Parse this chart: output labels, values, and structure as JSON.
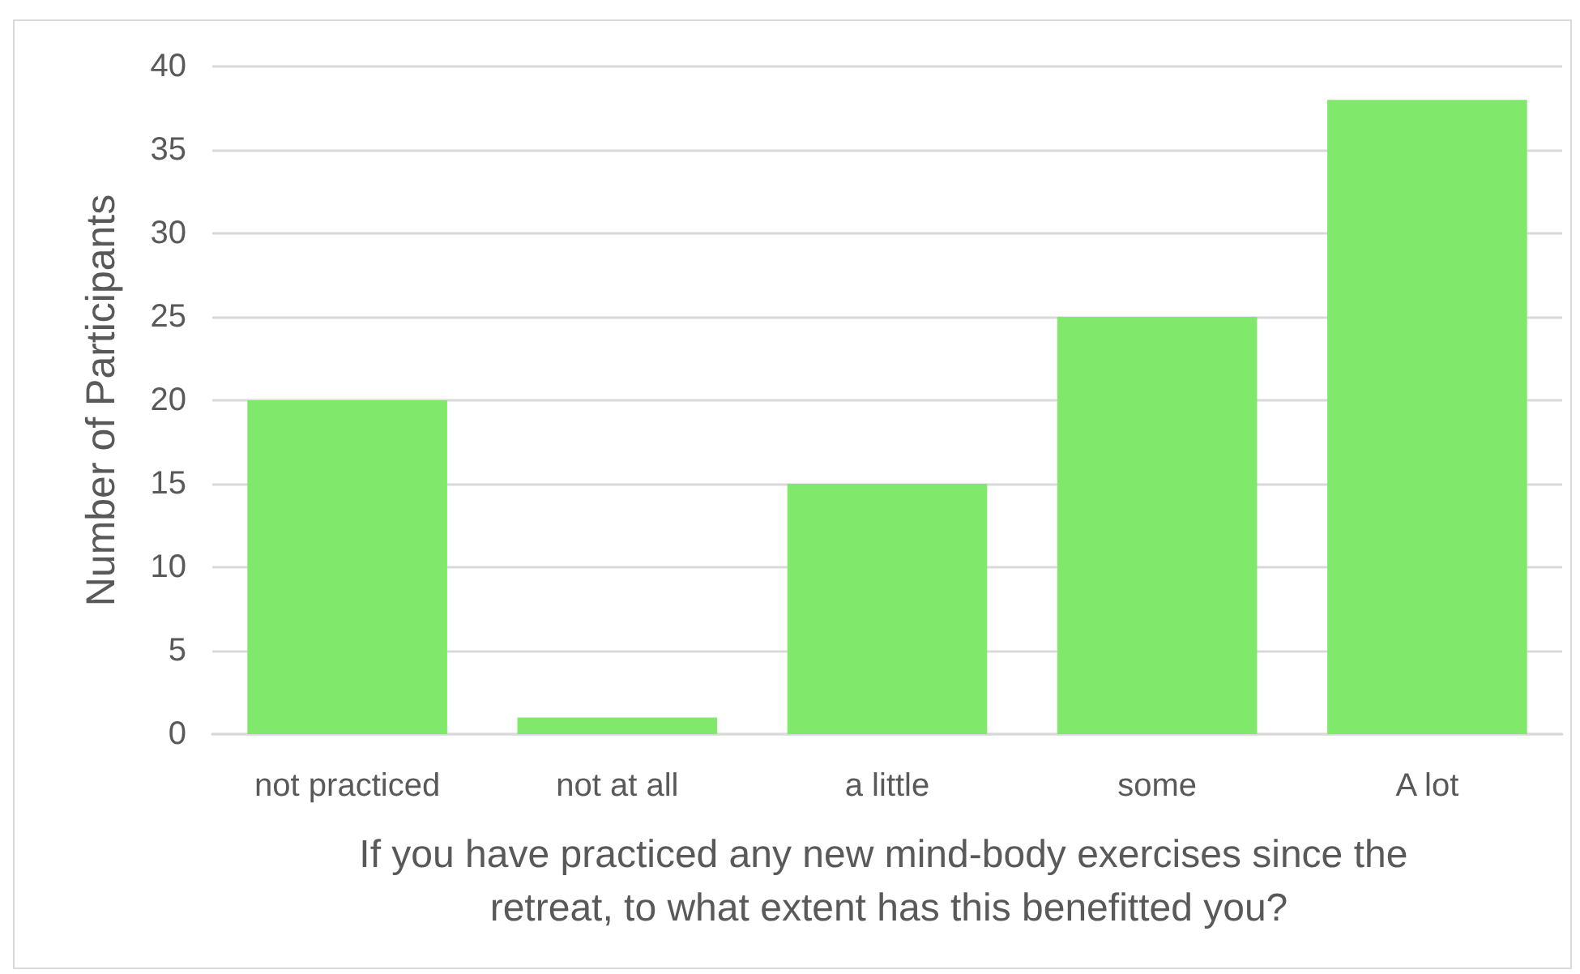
{
  "chart_data": {
    "type": "bar",
    "xlabel": "If you have practiced any new mind-body exercises since the retreat, to what extent has this benefitted you?",
    "ylabel": "Number of Participants",
    "categories": [
      "not practiced",
      "not at all",
      "a little",
      "some",
      "A lot"
    ],
    "values": [
      20,
      1,
      15,
      25,
      38
    ],
    "color": "#80e86a",
    "ylim": [
      0,
      40
    ],
    "yticks": [
      0,
      5,
      10,
      15,
      20,
      25,
      30,
      35,
      40
    ],
    "grid": "y"
  }
}
